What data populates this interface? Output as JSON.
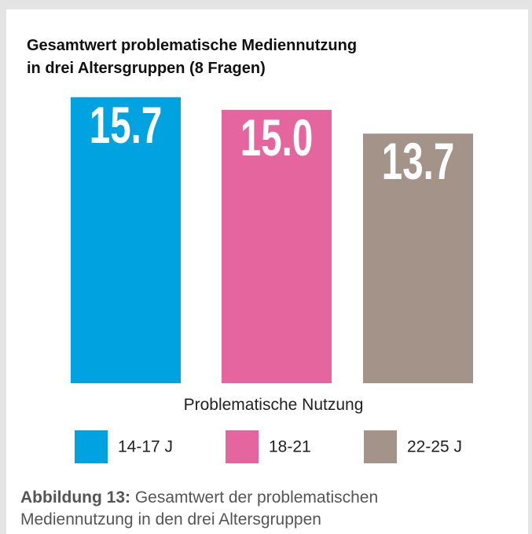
{
  "chart_data": {
    "type": "bar",
    "title": [
      "Gesamtwert problematische Mediennutzung",
      "in drei Altersgruppen (8 Fragen)"
    ],
    "categories": [
      "14-17 J",
      "18-21",
      "22-25 J"
    ],
    "values": [
      15.7,
      15.0,
      13.7
    ],
    "value_labels": [
      "15.7",
      "15.0",
      "13.7"
    ],
    "colors": [
      "#00a3e0",
      "#e5659f",
      "#a39388"
    ],
    "xlabel": "Problematische Nutzung",
    "caption": {
      "label": "Abbildung 13:",
      "text": "Gesamtwert der problematischen Mediennutzung in den drei Altersgruppen"
    }
  }
}
